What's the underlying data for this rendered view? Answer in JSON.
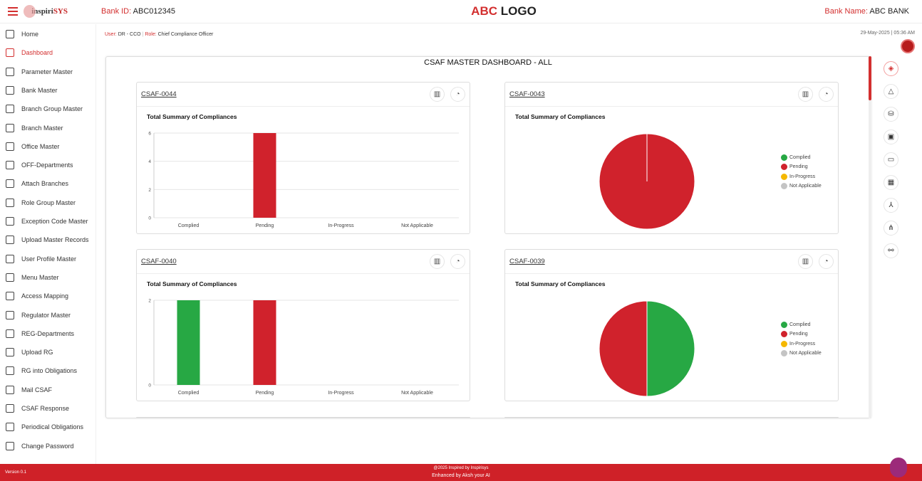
{
  "header": {
    "bank_id_label": "Bank ID:",
    "bank_id": "ABC012345",
    "logo_red": "ABC",
    "logo_black": "LOGO",
    "bank_name_label": "Bank Name:",
    "bank_name": "ABC BANK",
    "brand": "inspiriSYS"
  },
  "user": {
    "user_label": "User:",
    "user": "DR - CCO",
    "sep": "|",
    "role_label": "Role:",
    "role": "Chief Compliance Officer",
    "datetime": "29-May-2025 | 05:36 AM"
  },
  "sidebar": {
    "items": [
      {
        "label": "Home"
      },
      {
        "label": "Dashboard",
        "active": true
      },
      {
        "label": "Parameter Master"
      },
      {
        "label": "Bank Master"
      },
      {
        "label": "Branch Group Master"
      },
      {
        "label": "Branch Master"
      },
      {
        "label": "Office Master"
      },
      {
        "label": "OFF-Departments"
      },
      {
        "label": "Attach Branches"
      },
      {
        "label": "Role Group Master"
      },
      {
        "label": "Exception Code Master"
      },
      {
        "label": "Upload Master Records"
      },
      {
        "label": "User Profile Master"
      },
      {
        "label": "Menu Master"
      },
      {
        "label": "Access Mapping"
      },
      {
        "label": "Regulator Master"
      },
      {
        "label": "REG-Departments"
      },
      {
        "label": "Upload RG"
      },
      {
        "label": "RG into Obligations"
      },
      {
        "label": "Mail CSAF"
      },
      {
        "label": "CSAF Response"
      },
      {
        "label": "Periodical Obligations"
      },
      {
        "label": "Change Password"
      }
    ]
  },
  "dashboard": {
    "title": "CSAF MASTER DASHBOARD - ALL",
    "subtitle": "Total Summary of Compliances"
  },
  "colors": {
    "Complied": "#27a844",
    "Pending": "#d0222c",
    "In-Progress": "#f5b800",
    "Not Applicable": "#c4c4c4"
  },
  "chart_data": [
    {
      "id": "CSAF-0044",
      "type": "bar",
      "categories": [
        "Complied",
        "Pending",
        "In-Progress",
        "Not Applicable"
      ],
      "values": [
        0,
        6,
        0,
        0
      ],
      "ylim": [
        0,
        6
      ],
      "yticks": [
        0,
        2,
        4,
        6
      ]
    },
    {
      "id": "CSAF-0043",
      "type": "pie",
      "categories": [
        "Complied",
        "Pending",
        "In-Progress",
        "Not Applicable"
      ],
      "values": [
        0,
        6,
        0,
        0
      ]
    },
    {
      "id": "CSAF-0040",
      "type": "bar",
      "categories": [
        "Complied",
        "Pending",
        "In-Progress",
        "Not Applicable"
      ],
      "values": [
        2,
        2,
        0,
        0
      ],
      "ylim": [
        0,
        2
      ],
      "yticks": [
        0,
        2
      ]
    },
    {
      "id": "CSAF-0039",
      "type": "pie",
      "categories": [
        "Complied",
        "Pending",
        "In-Progress",
        "Not Applicable"
      ],
      "values": [
        2,
        2,
        0,
        0
      ]
    }
  ],
  "footer": {
    "version": "Version 0.1",
    "copyright": "@2025 Inspired by Inspirisys",
    "enhanced": "Enhanced by Aksh your AI"
  }
}
